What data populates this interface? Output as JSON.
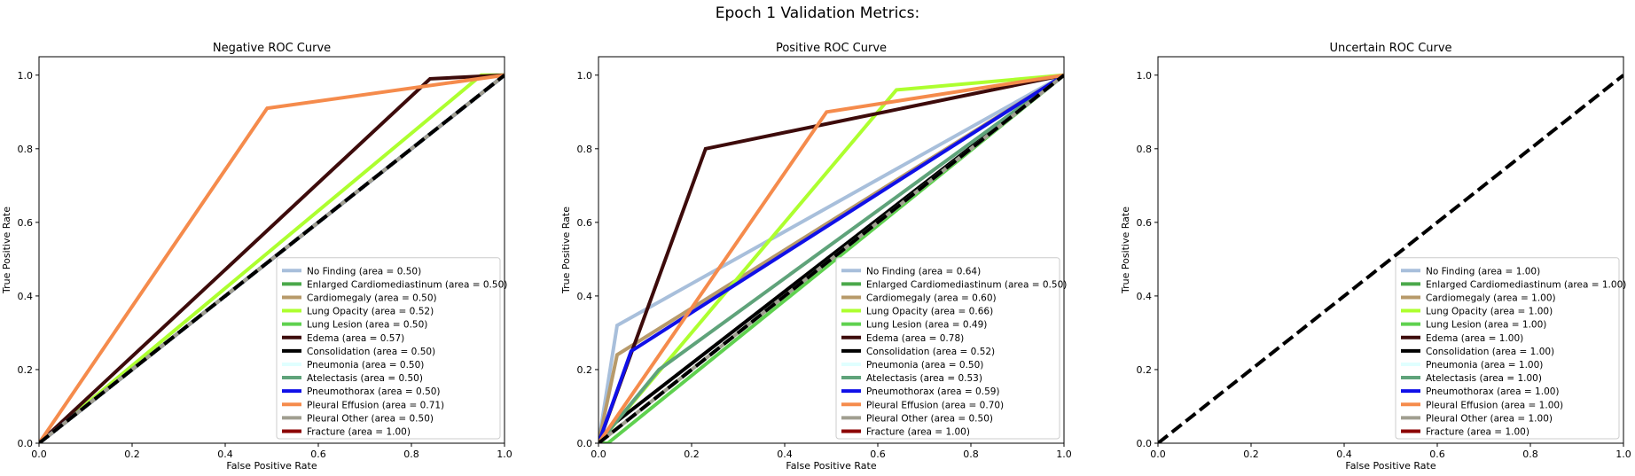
{
  "figure": {
    "suptitle": "Epoch 1 Validation Metrics:"
  },
  "colors": {
    "No Finding": "#a8bfdb",
    "Enlarged Cardiomediastinum": "#4aa84a",
    "Cardiomegaly": "#b79a6a",
    "Lung Opacity": "#adff2f",
    "Lung Lesion": "#5fd14f",
    "Edema": "#3d0b0b",
    "Consolidation": "#000000",
    "Pneumonia": "#e0ffff",
    "Atelectasis": "#5fa37a",
    "Pneumothorax": "#1010e8",
    "Pleural Effusion": "#f58b4c",
    "Pleural Other": "#a09e90",
    "Fracture": "#8b0000",
    "chance": "#000000"
  },
  "chart_data": [
    {
      "type": "line",
      "title": "Negative ROC Curve",
      "xlabel": "False Positive Rate",
      "ylabel": "True Positive Rate",
      "xlim": [
        0,
        1
      ],
      "ylim": [
        0,
        1.05
      ],
      "xticks": [
        "0.0",
        "0.2",
        "0.4",
        "0.6",
        "0.8",
        "1.0"
      ],
      "yticks": [
        "0.0",
        "0.2",
        "0.4",
        "0.6",
        "0.8",
        "1.0"
      ],
      "legend_position": "lower-right",
      "series": [
        {
          "name": "No Finding",
          "legend": "No Finding (area = 0.50)",
          "x": [
            0,
            1
          ],
          "y": [
            0,
            1
          ]
        },
        {
          "name": "Enlarged Cardiomediastinum",
          "legend": "Enlarged Cardiomediastinum (area = 0.50)",
          "x": [
            0,
            1
          ],
          "y": [
            0,
            1
          ]
        },
        {
          "name": "Cardiomegaly",
          "legend": "Cardiomegaly (area = 0.50)",
          "x": [
            0,
            1
          ],
          "y": [
            0,
            1
          ]
        },
        {
          "name": "Lung Opacity",
          "legend": "Lung Opacity (area = 0.52)",
          "x": [
            0,
            0.95,
            1
          ],
          "y": [
            0,
            1.0,
            1
          ]
        },
        {
          "name": "Lung Lesion",
          "legend": "Lung Lesion (area = 0.50)",
          "x": [
            0,
            1
          ],
          "y": [
            0,
            1
          ]
        },
        {
          "name": "Edema",
          "legend": "Edema (area = 0.57)",
          "x": [
            0,
            0.84,
            1
          ],
          "y": [
            0,
            0.99,
            1
          ]
        },
        {
          "name": "Consolidation",
          "legend": "Consolidation (area = 0.50)",
          "x": [
            0,
            1
          ],
          "y": [
            0,
            1
          ]
        },
        {
          "name": "Pneumonia",
          "legend": "Pneumonia (area = 0.50)",
          "x": [
            0,
            1
          ],
          "y": [
            0,
            1
          ]
        },
        {
          "name": "Atelectasis",
          "legend": "Atelectasis (area = 0.50)",
          "x": [
            0,
            1
          ],
          "y": [
            0,
            1
          ]
        },
        {
          "name": "Pneumothorax",
          "legend": "Pneumothorax (area = 0.50)",
          "x": [
            0,
            1
          ],
          "y": [
            0,
            1
          ]
        },
        {
          "name": "Pleural Effusion",
          "legend": "Pleural Effusion (area = 0.71)",
          "x": [
            0,
            0.49,
            1
          ],
          "y": [
            0,
            0.91,
            1
          ]
        },
        {
          "name": "Pleural Other",
          "legend": "Pleural Other (area = 0.50)",
          "x": [
            0,
            1
          ],
          "y": [
            0,
            1
          ]
        },
        {
          "name": "Fracture",
          "legend": "Fracture (area = 1.00)",
          "x": [],
          "y": []
        }
      ]
    },
    {
      "type": "line",
      "title": "Positive ROC Curve",
      "xlabel": "False Positive Rate",
      "ylabel": "True Positive Rate",
      "xlim": [
        0,
        1
      ],
      "ylim": [
        0,
        1.05
      ],
      "xticks": [
        "0.0",
        "0.2",
        "0.4",
        "0.6",
        "0.8",
        "1.0"
      ],
      "yticks": [
        "0.0",
        "0.2",
        "0.4",
        "0.6",
        "0.8",
        "1.0"
      ],
      "legend_position": "lower-right",
      "series": [
        {
          "name": "No Finding",
          "legend": "No Finding (area = 0.64)",
          "x": [
            0,
            0.04,
            1
          ],
          "y": [
            0,
            0.32,
            1
          ]
        },
        {
          "name": "Enlarged Cardiomediastinum",
          "legend": "Enlarged Cardiomediastinum (area = 0.50)",
          "x": [
            0,
            1
          ],
          "y": [
            0,
            1
          ]
        },
        {
          "name": "Cardiomegaly",
          "legend": "Cardiomegaly (area = 0.60)",
          "x": [
            0,
            0.04,
            1
          ],
          "y": [
            0,
            0.24,
            1
          ]
        },
        {
          "name": "Lung Opacity",
          "legend": "Lung Opacity (area = 0.66)",
          "x": [
            0,
            0.64,
            1
          ],
          "y": [
            0,
            0.96,
            1
          ]
        },
        {
          "name": "Lung Lesion",
          "legend": "Lung Lesion (area = 0.49)",
          "x": [
            0,
            0.02,
            1
          ],
          "y": [
            0,
            0,
            1
          ]
        },
        {
          "name": "Edema",
          "legend": "Edema (area = 0.78)",
          "x": [
            0,
            0.23,
            1
          ],
          "y": [
            0,
            0.8,
            1
          ]
        },
        {
          "name": "Consolidation",
          "legend": "Consolidation (area = 0.52)",
          "x": [
            0,
            0.03,
            1
          ],
          "y": [
            0,
            0.05,
            1
          ]
        },
        {
          "name": "Pneumonia",
          "legend": "Pneumonia (area = 0.50)",
          "x": [
            0,
            1
          ],
          "y": [
            0,
            1
          ]
        },
        {
          "name": "Atelectasis",
          "legend": "Atelectasis (area = 0.53)",
          "x": [
            0,
            0.13,
            1
          ],
          "y": [
            0,
            0.2,
            1
          ]
        },
        {
          "name": "Pneumothorax",
          "legend": "Pneumothorax (area = 0.59)",
          "x": [
            0,
            0.07,
            1
          ],
          "y": [
            0,
            0.25,
            1
          ]
        },
        {
          "name": "Pleural Effusion",
          "legend": "Pleural Effusion (area = 0.70)",
          "x": [
            0,
            0.49,
            1
          ],
          "y": [
            0,
            0.9,
            1
          ]
        },
        {
          "name": "Pleural Other",
          "legend": "Pleural Other (area = 0.50)",
          "x": [
            0,
            1
          ],
          "y": [
            0,
            1
          ]
        },
        {
          "name": "Fracture",
          "legend": "Fracture (area = 1.00)",
          "x": [],
          "y": []
        }
      ]
    },
    {
      "type": "line",
      "title": "Uncertain ROC Curve",
      "xlabel": "False Positive Rate",
      "ylabel": "True Positive Rate",
      "xlim": [
        0,
        1
      ],
      "ylim": [
        0,
        1.05
      ],
      "xticks": [
        "0.0",
        "0.2",
        "0.4",
        "0.6",
        "0.8",
        "1.0"
      ],
      "yticks": [
        "0.0",
        "0.2",
        "0.4",
        "0.6",
        "0.8",
        "1.0"
      ],
      "legend_position": "lower-right",
      "series": [
        {
          "name": "No Finding",
          "legend": "No Finding (area = 1.00)",
          "x": [],
          "y": []
        },
        {
          "name": "Enlarged Cardiomediastinum",
          "legend": "Enlarged Cardiomediastinum (area = 1.00)",
          "x": [],
          "y": []
        },
        {
          "name": "Cardiomegaly",
          "legend": "Cardiomegaly (area = 1.00)",
          "x": [],
          "y": []
        },
        {
          "name": "Lung Opacity",
          "legend": "Lung Opacity (area = 1.00)",
          "x": [],
          "y": []
        },
        {
          "name": "Lung Lesion",
          "legend": "Lung Lesion (area = 1.00)",
          "x": [],
          "y": []
        },
        {
          "name": "Edema",
          "legend": "Edema (area = 1.00)",
          "x": [],
          "y": []
        },
        {
          "name": "Consolidation",
          "legend": "Consolidation (area = 1.00)",
          "x": [],
          "y": []
        },
        {
          "name": "Pneumonia",
          "legend": "Pneumonia (area = 1.00)",
          "x": [],
          "y": []
        },
        {
          "name": "Atelectasis",
          "legend": "Atelectasis (area = 1.00)",
          "x": [],
          "y": []
        },
        {
          "name": "Pneumothorax",
          "legend": "Pneumothorax (area = 1.00)",
          "x": [],
          "y": []
        },
        {
          "name": "Pleural Effusion",
          "legend": "Pleural Effusion (area = 1.00)",
          "x": [],
          "y": []
        },
        {
          "name": "Pleural Other",
          "legend": "Pleural Other (area = 1.00)",
          "x": [],
          "y": []
        },
        {
          "name": "Fracture",
          "legend": "Fracture (area = 1.00)",
          "x": [],
          "y": []
        }
      ]
    }
  ]
}
